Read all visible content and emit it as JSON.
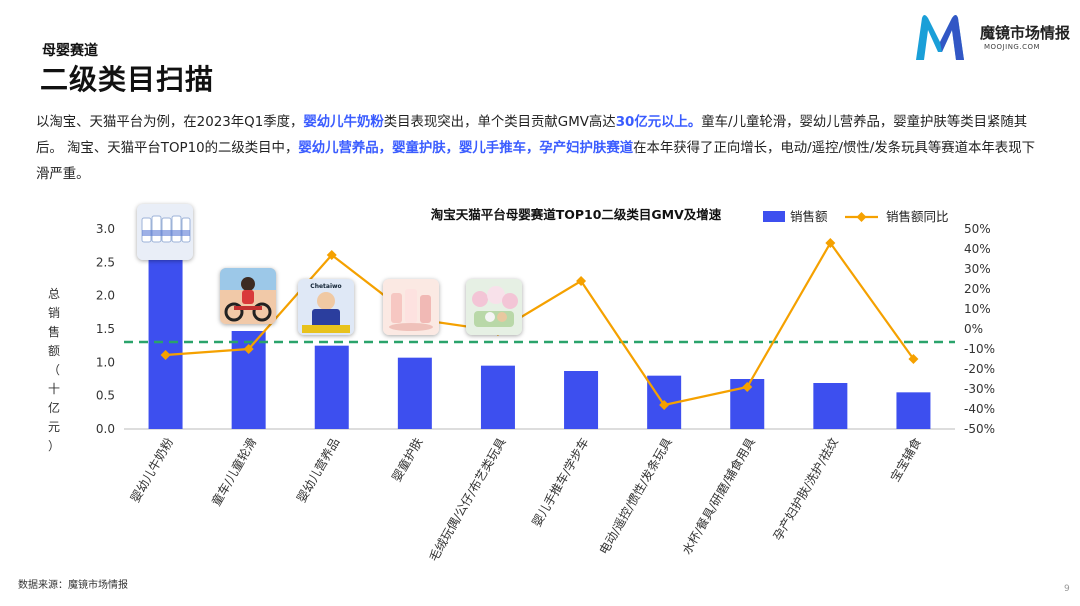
{
  "header": {
    "section": "母婴赛道",
    "title": "二级类目扫描"
  },
  "logo": {
    "name": "魔镜市场情报",
    "url": "MOOJING.COM",
    "color_primary": "#1a9fd8",
    "color_secondary": "#3b3fbf"
  },
  "intro": {
    "p1": "以淘宝、天猫平台为例，在2023年Q1季度，",
    "h1": "婴幼儿牛奶粉",
    "p2": "类目表现突出，单个类目贡献GMV高达",
    "h2": "30亿元以上。",
    "p3": "童车/儿童轮滑，婴幼儿营养品，婴童护肤等类目紧随其后。 淘宝、天猫平台TOP10的二级类目中，",
    "h3": "婴幼儿营养品，婴童护肤，婴儿手推车，孕产妇护肤赛道",
    "p4": "在本年获得了正向增长，电动/遥控/惯性/发条玩具等赛道本年表现下滑严重。"
  },
  "colors": {
    "bar": "#3d4fef",
    "line": "#f5a100",
    "reference": "#2aa36b",
    "highlight": "#3a5cff"
  },
  "chart_data": {
    "type": "bar",
    "title": "淘宝天猫平台母婴赛道TOP10二级类目GMV及增速",
    "ylabel": "总销售额（十亿元）",
    "ylim": [
      0,
      3.0
    ],
    "yticks": [
      "0.0",
      "0.5",
      "1.0",
      "1.5",
      "2.0",
      "2.5",
      "3.0"
    ],
    "y2lim": [
      -50,
      50
    ],
    "y2ticks": [
      "-50%",
      "-40%",
      "-30%",
      "-20%",
      "-10%",
      "0%",
      "10%",
      "20%",
      "30%",
      "40%",
      "50%"
    ],
    "legend_position": "top-right",
    "grid": false,
    "categories": [
      "婴幼儿牛奶粉",
      "童车/儿童轮滑",
      "婴幼儿营养品",
      "婴童护肤",
      "毛绒玩偶/公仔/布艺类玩具",
      "婴儿手推车/学步车",
      "电动/遥控/惯性/发条玩具",
      "水杯/餐具/研磨/辅食用具",
      "孕产妇护肤/洗护/祛纹",
      "宝宝辅食"
    ],
    "series": [
      {
        "name": "销售额",
        "type": "bar",
        "axis": "left",
        "values": [
          3.1,
          1.47,
          1.25,
          1.07,
          0.95,
          0.87,
          0.8,
          0.75,
          0.69,
          0.55
        ]
      },
      {
        "name": "销售额同比",
        "type": "line",
        "axis": "right",
        "values": [
          -13,
          -10,
          37,
          5,
          -1,
          24,
          -38,
          -29,
          43,
          -15
        ]
      }
    ],
    "reference_line": {
      "axis": "right",
      "value": -6.5,
      "style": "dashed"
    }
  },
  "thumbnails": [
    {
      "name": "milk-powder-thumb",
      "category_index": 0
    },
    {
      "name": "kids-bike-thumb",
      "category_index": 1
    },
    {
      "name": "supplement-thumb",
      "category_index": 2,
      "text": "Chetaiwo"
    },
    {
      "name": "skincare-thumb",
      "category_index": 3
    },
    {
      "name": "plush-toy-thumb",
      "category_index": 4
    }
  ],
  "footer": {
    "source": "数据来源：魔镜市场情报",
    "page": "9"
  }
}
